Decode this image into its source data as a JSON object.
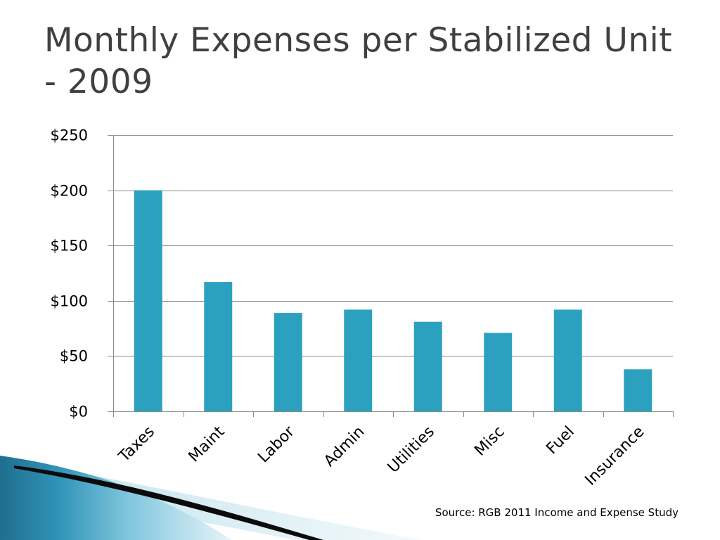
{
  "slide": {
    "title": "Monthly Expenses per Stabilized Unit - 2009",
    "source": "Source: RGB 2011 Income and Expense Study"
  },
  "colors": {
    "bar": "#2ba1bf",
    "gridline": "#8c8c8c",
    "axis": "#8c8c8c"
  },
  "chart_data": {
    "type": "bar",
    "title": "Monthly Expenses per Stabilized Unit - 2009",
    "xlabel": "",
    "ylabel": "",
    "categories": [
      "Taxes",
      "Maint",
      "Labor",
      "Admin",
      "Utilities",
      "Misc",
      "Fuel",
      "Insurance"
    ],
    "values": [
      200,
      117,
      89,
      92,
      81,
      71,
      92,
      38
    ],
    "ylim": [
      0,
      250
    ],
    "yticks": [
      0,
      50,
      100,
      150,
      200,
      250
    ],
    "ytick_labels": [
      "$0",
      "$50",
      "$100",
      "$150",
      "$200",
      "$250"
    ],
    "grid": true,
    "legend": "none"
  }
}
